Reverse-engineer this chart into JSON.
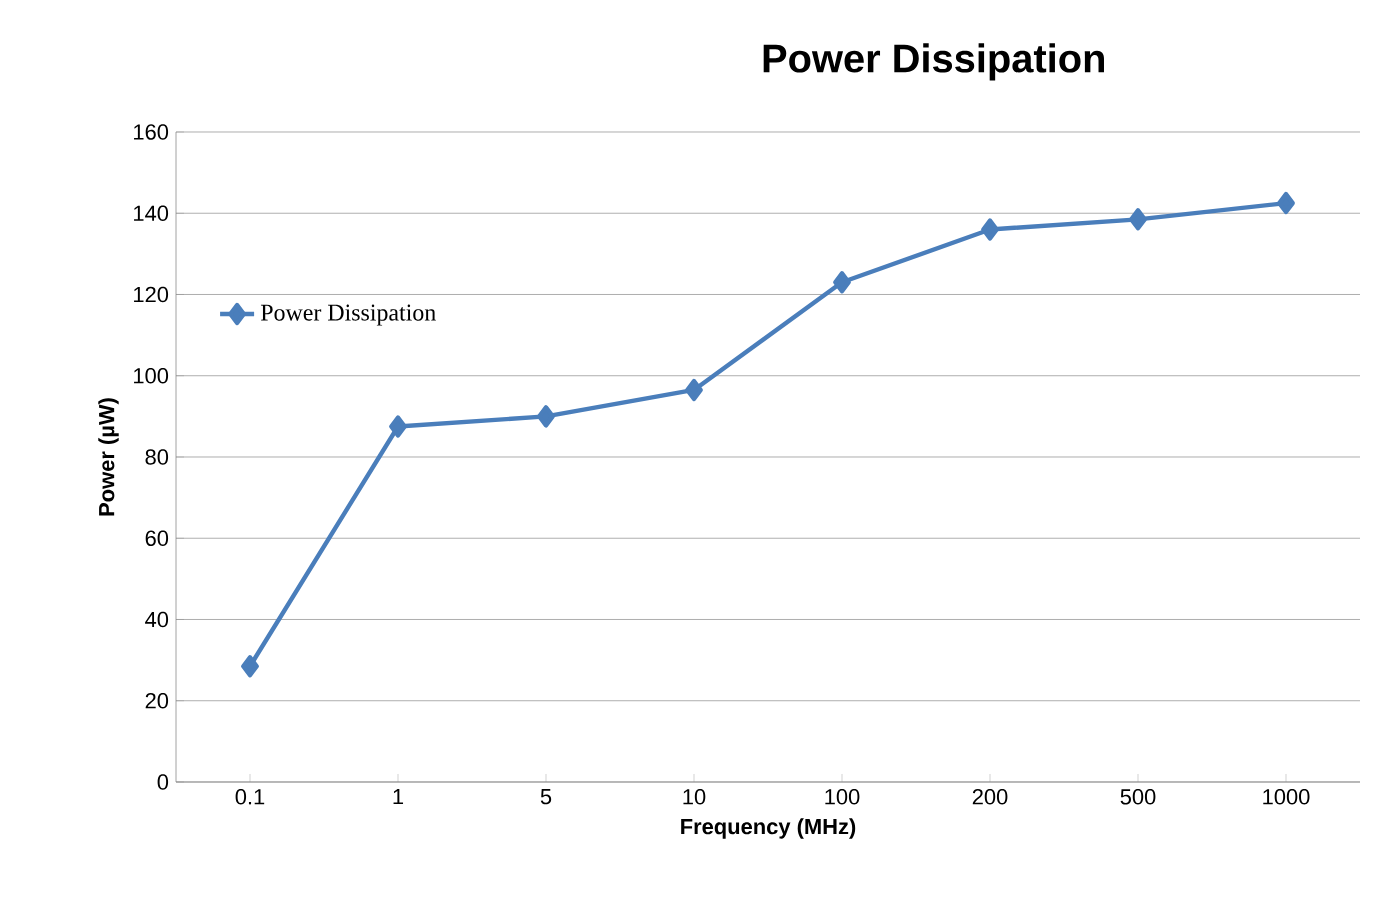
{
  "chart_data": {
    "type": "line",
    "title": "Power Dissipation",
    "xlabel": "Frequency (MHz)",
    "ylabel": "Power (µW)",
    "categories": [
      "0.1",
      "1",
      "5",
      "10",
      "100",
      "200",
      "500",
      "1000"
    ],
    "series": [
      {
        "name": "Power Dissipation",
        "color": "#4a7ebb",
        "values": [
          28.5,
          87.5,
          90,
          96.5,
          123,
          136,
          138.5,
          142.5
        ]
      }
    ],
    "ylim": [
      0,
      160
    ],
    "yticks": [
      0,
      20,
      40,
      60,
      80,
      100,
      120,
      140,
      160
    ],
    "grid": "y",
    "legend": "left",
    "marker": "diamond",
    "line_style": "solid"
  }
}
